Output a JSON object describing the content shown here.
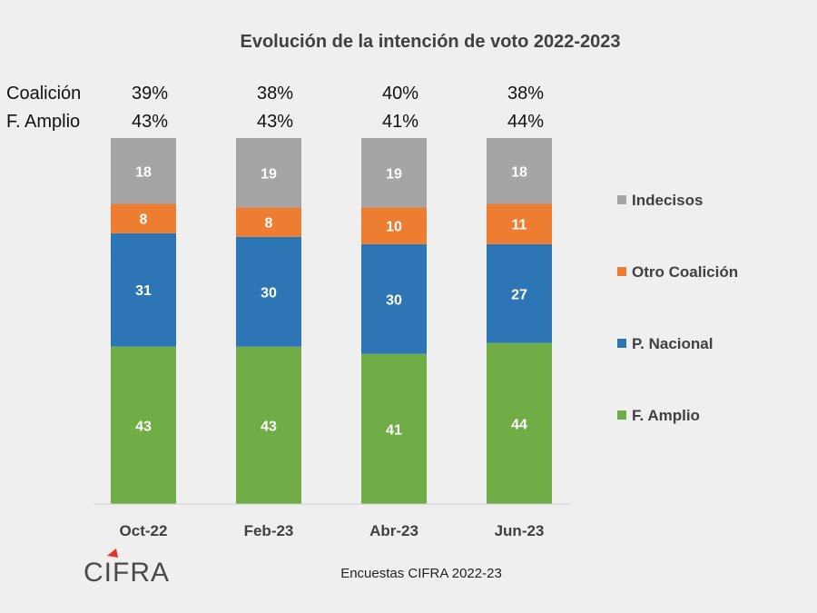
{
  "chart_data": {
    "type": "bar",
    "stacked": true,
    "title": "Evolución de la intención de voto 2022-2023",
    "categories": [
      "Oct-22",
      "Feb-23",
      "Abr-23",
      "Jun-23"
    ],
    "series": [
      {
        "name": "F. Amplio",
        "color": "#70ad47",
        "values": [
          43,
          43,
          41,
          44
        ]
      },
      {
        "name": "P. Nacional",
        "color": "#2e75b6",
        "values": [
          31,
          30,
          30,
          27
        ]
      },
      {
        "name": "Otro Coalición",
        "color": "#ed7d31",
        "values": [
          8,
          8,
          10,
          11
        ]
      },
      {
        "name": "Indecisos",
        "color": "#a5a5a5",
        "values": [
          18,
          19,
          19,
          18
        ]
      }
    ],
    "summary_rows": [
      {
        "label": "Coalición",
        "values": [
          "39%",
          "38%",
          "40%",
          "38%"
        ]
      },
      {
        "label": "F. Amplio",
        "values": [
          "43%",
          "43%",
          "41%",
          "44%"
        ]
      }
    ],
    "ylim": [
      0,
      100
    ],
    "grid": false,
    "legend_position": "right"
  },
  "source_note": "Encuestas CIFRA 2022-23",
  "logo": {
    "text": "CIFRA",
    "accent_color": "#e3342f"
  }
}
